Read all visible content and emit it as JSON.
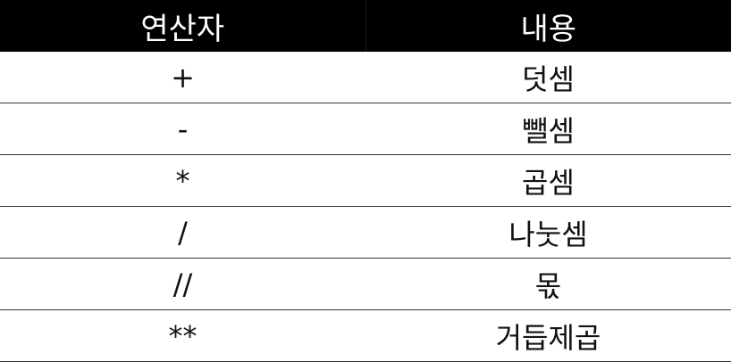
{
  "table": {
    "headers": [
      "연산자",
      "내용"
    ],
    "rows": [
      {
        "operator": "+",
        "meaning": "덧셈"
      },
      {
        "operator": "-",
        "meaning": "뺄셈"
      },
      {
        "operator": "*",
        "meaning": "곱셈"
      },
      {
        "operator": "/",
        "meaning": "나눗셈"
      },
      {
        "operator": "//",
        "meaning": "몫"
      },
      {
        "operator": "**",
        "meaning": "거듭제곱"
      }
    ]
  },
  "colors": {
    "header_bg": "#000000",
    "header_text": "#ffffff",
    "row_divider": "#333333"
  }
}
